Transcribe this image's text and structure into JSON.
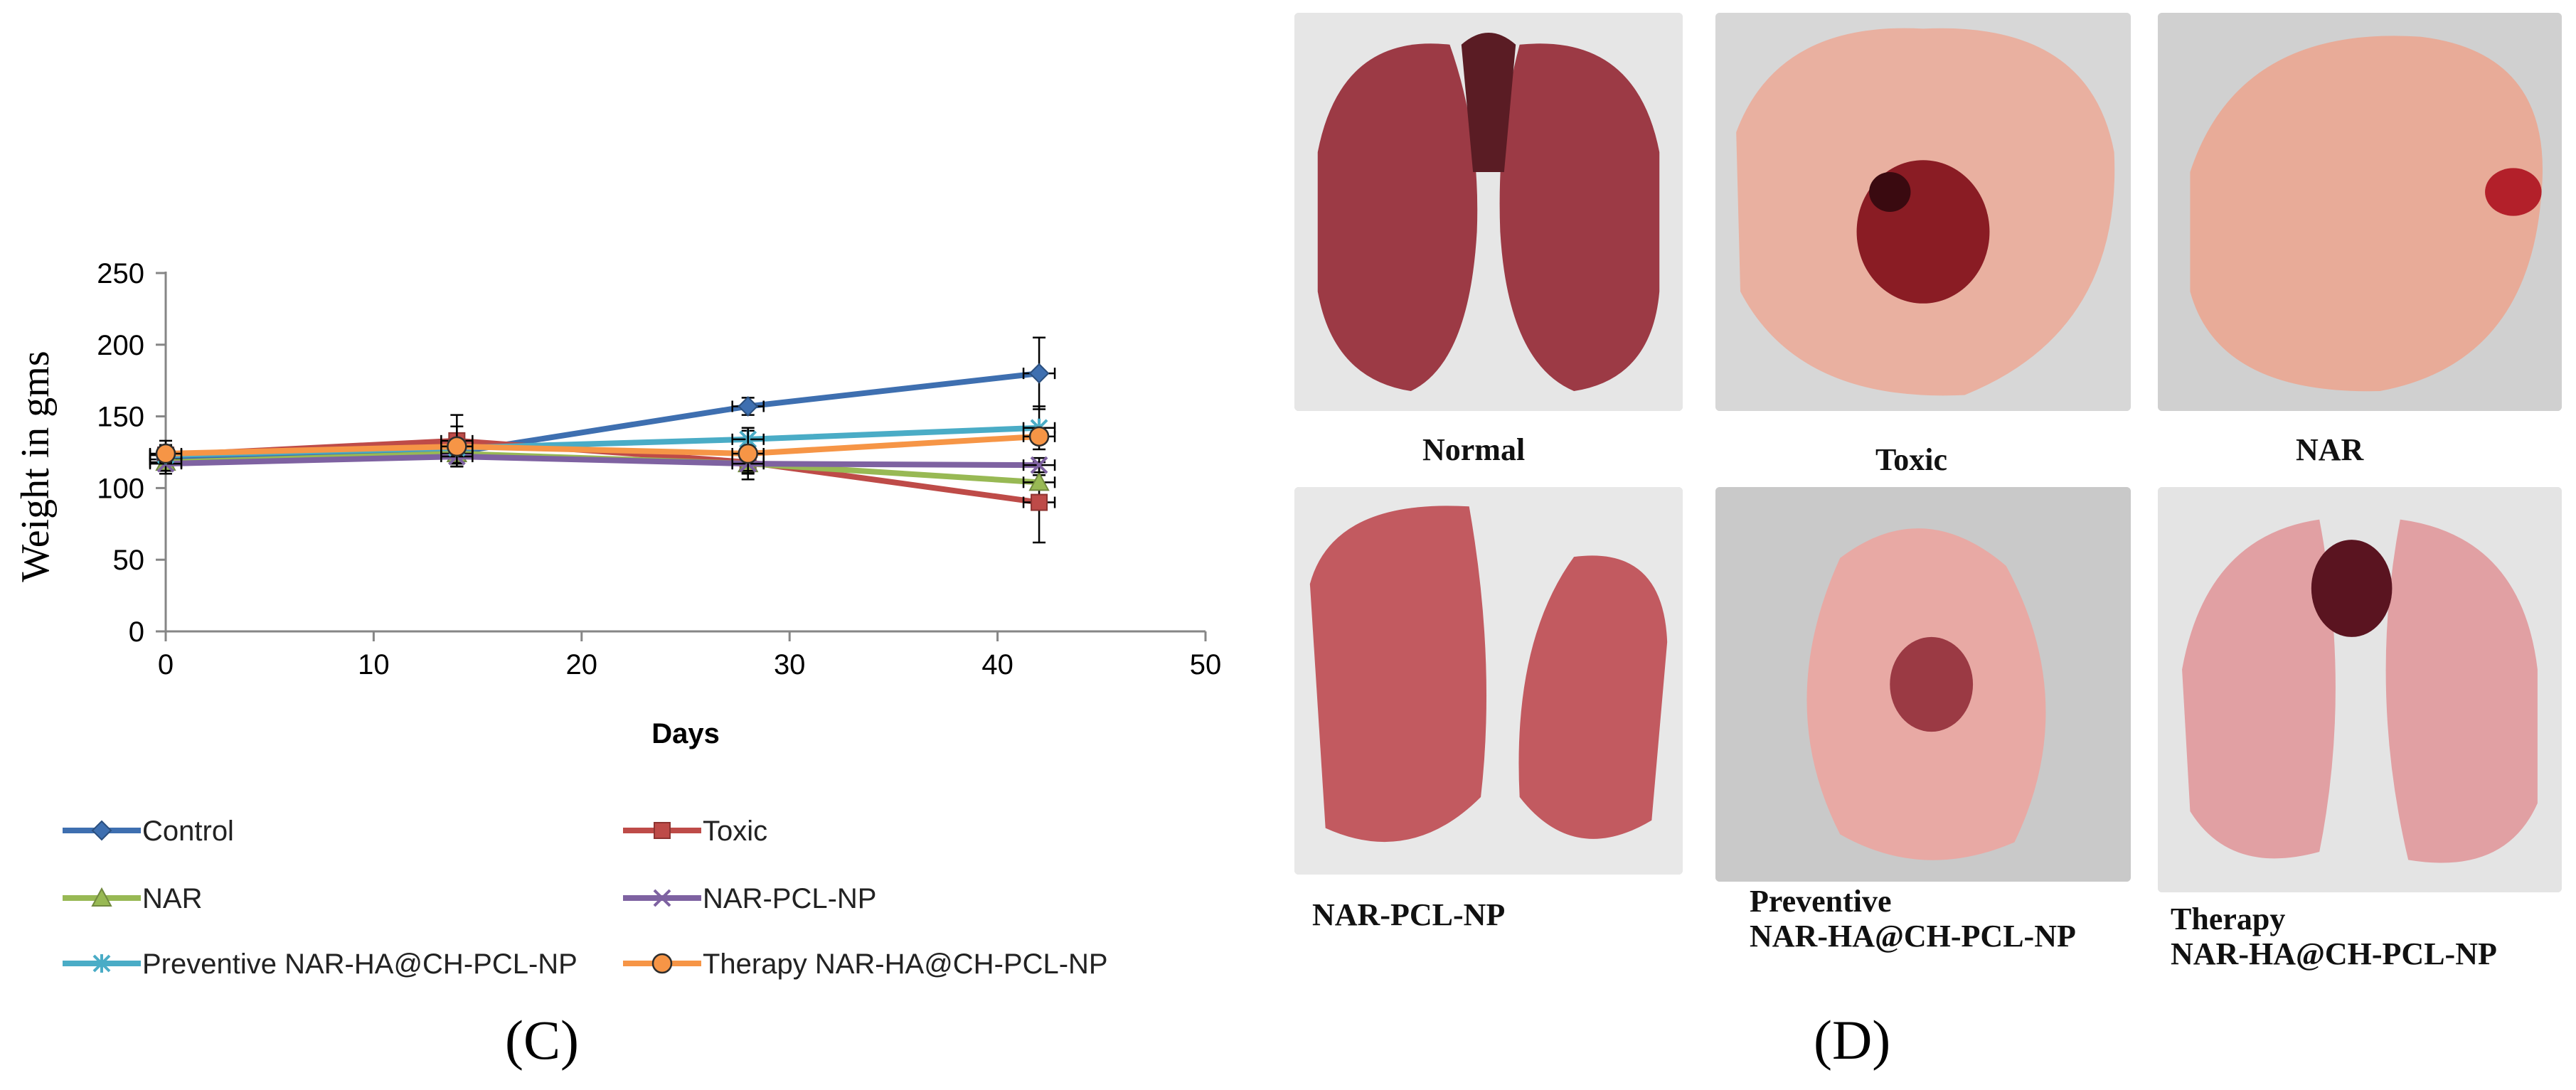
{
  "chart_data": {
    "type": "line",
    "title": "",
    "xlabel": "Days",
    "ylabel": "Weight in gms",
    "xlim": [
      0,
      50
    ],
    "ylim": [
      0,
      250
    ],
    "xticks": [
      0,
      10,
      20,
      30,
      40,
      50
    ],
    "yticks": [
      0,
      50,
      100,
      150,
      200,
      250
    ],
    "x": [
      0,
      14,
      28,
      42
    ],
    "grid": false,
    "legend": "bottom",
    "series": [
      {
        "name": "Control",
        "color": "#3e6fb0",
        "marker": "diamond",
        "values": [
          120,
          125,
          157,
          180
        ],
        "errors": [
          10,
          10,
          6,
          25
        ]
      },
      {
        "name": "Toxic",
        "color": "#be4b48",
        "marker": "square",
        "values": [
          123,
          133,
          118,
          90
        ],
        "errors": [
          10,
          18,
          8,
          28
        ]
      },
      {
        "name": "NAR",
        "color": "#98b954",
        "marker": "triangle",
        "values": [
          118,
          124,
          117,
          104
        ],
        "errors": [
          5,
          6,
          6,
          5
        ]
      },
      {
        "name": "NAR-PCL-NP",
        "color": "#7e62a1",
        "marker": "x",
        "values": [
          117,
          122,
          117,
          116
        ],
        "errors": [
          5,
          5,
          5,
          5
        ]
      },
      {
        "name": "Preventive NAR-HA@CH-PCL-NP",
        "color": "#4aacc6",
        "marker": "asterisk",
        "values": [
          123,
          128,
          134,
          142
        ],
        "errors": [
          6,
          6,
          6,
          15
        ]
      },
      {
        "name": "Therapy NAR-HA@CH-PCL-NP",
        "color": "#f69546",
        "marker": "circle",
        "values": [
          124,
          129,
          124,
          136
        ],
        "errors": [
          6,
          14,
          18,
          5
        ]
      }
    ]
  },
  "panels": {
    "c_label": "(C)",
    "d_label": "(D)"
  },
  "photos": [
    {
      "caption": "Normal",
      "tissue": "#9c3a45"
    },
    {
      "caption": "Toxic",
      "tissue": "#e9b0a0"
    },
    {
      "caption": "NAR",
      "tissue": "#e8ab98"
    },
    {
      "caption": "NAR-PCL-NP",
      "tissue": "#c25a60"
    },
    {
      "caption": "Preventive\nNAR-HA@CH-PCL-NP",
      "tissue": "#e8a9a4"
    },
    {
      "caption": "Therapy\nNAR-HA@CH-PCL-NP",
      "tissue": "#e1a0a3"
    }
  ]
}
